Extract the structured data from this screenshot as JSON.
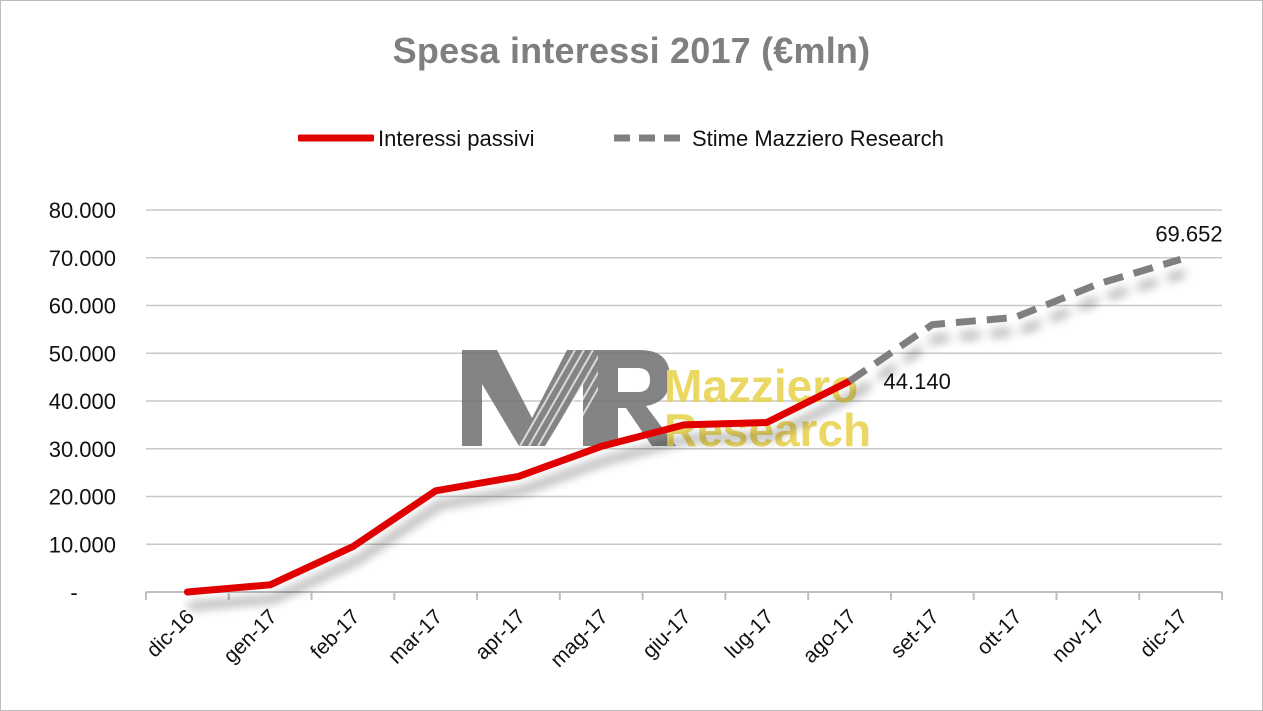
{
  "chart_data": {
    "type": "line",
    "title": "Spesa interessi 2017 (€mln)",
    "categories": [
      "dic-16",
      "gen-17",
      "feb-17",
      "mar-17",
      "apr-17",
      "mag-17",
      "giu-17",
      "lug-17",
      "ago-17",
      "set-17",
      "ott-17",
      "nov-17",
      "dic-17"
    ],
    "series": [
      {
        "name": "Interessi passivi",
        "color": "#e00000",
        "style": "solid",
        "values": [
          0,
          1500,
          9500,
          21200,
          24200,
          30500,
          35000,
          35500,
          44140,
          null,
          null,
          null,
          null
        ]
      },
      {
        "name": "Stime Mazziero Research",
        "color": "#7f7f7f",
        "style": "dashed",
        "values": [
          null,
          null,
          null,
          null,
          null,
          null,
          null,
          null,
          44140,
          56000,
          57500,
          64500,
          69652
        ]
      }
    ],
    "data_labels": [
      {
        "category": "ago-17",
        "text": "44.140"
      },
      {
        "category": "dic-17",
        "text": "69.652"
      }
    ],
    "yticks": [
      "-",
      "10.000",
      "20.000",
      "30.000",
      "40.000",
      "50.000",
      "60.000",
      "70.000",
      "80.000"
    ],
    "ylim": [
      0,
      80000
    ],
    "grid": true,
    "legend": "top-center",
    "watermark": {
      "mark": "MR",
      "line1": "Mazziero",
      "line2": "Research"
    }
  }
}
